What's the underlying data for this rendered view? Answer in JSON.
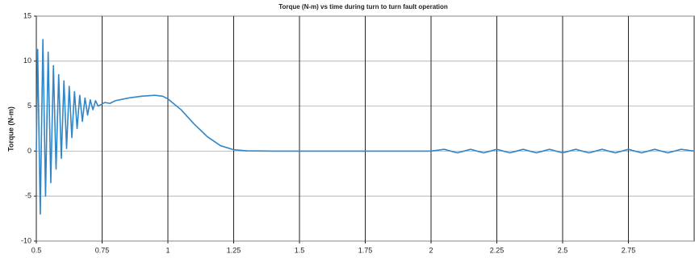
{
  "chart_data": {
    "type": "line",
    "title": "Torque (N-m) vs time during turn to turn fault operation",
    "y_label": "Torque (N-m)",
    "color": "#2f86c9",
    "grid": true,
    "xlim": [
      0.5,
      3.0
    ],
    "xticks": [
      0.5,
      0.75,
      1,
      1.25,
      1.5,
      1.75,
      2,
      2.25,
      2.5,
      2.75
    ],
    "ylim": [
      -10,
      15
    ],
    "yticks": [
      -10,
      -5,
      0,
      5,
      10,
      15
    ],
    "x": [
      0.5,
      0.505,
      0.515,
      0.525,
      0.535,
      0.545,
      0.555,
      0.565,
      0.575,
      0.585,
      0.595,
      0.605,
      0.615,
      0.625,
      0.635,
      0.645,
      0.655,
      0.665,
      0.675,
      0.685,
      0.695,
      0.705,
      0.715,
      0.725,
      0.735,
      0.76,
      0.78,
      0.8,
      0.85,
      0.9,
      0.95,
      0.98,
      1.0,
      1.05,
      1.1,
      1.15,
      1.2,
      1.25,
      1.3,
      1.4,
      1.5,
      2.0,
      2.05,
      2.1,
      2.15,
      2.2,
      2.25,
      2.3,
      2.35,
      2.4,
      2.45,
      2.5,
      2.55,
      2.6,
      2.65,
      2.7,
      2.75,
      2.8,
      2.85,
      2.9,
      2.95,
      3.0
    ],
    "values": [
      0,
      11.3,
      -7,
      12.4,
      -5,
      11,
      -3.5,
      9.5,
      -2,
      8.5,
      -0.8,
      7.8,
      0.3,
      7.2,
      1.5,
      6.6,
      2.5,
      6.2,
      3.3,
      5.9,
      4.0,
      5.7,
      4.6,
      5.6,
      5.0,
      5.4,
      5.3,
      5.6,
      5.9,
      6.1,
      6.2,
      6.1,
      5.8,
      4.6,
      3.0,
      1.6,
      0.6,
      0.15,
      0.03,
      0,
      0,
      0,
      0.2,
      -0.2,
      0.2,
      -0.2,
      0.2,
      -0.2,
      0.2,
      -0.2,
      0.2,
      -0.2,
      0.2,
      -0.2,
      0.2,
      -0.2,
      0.2,
      -0.2,
      0.2,
      -0.2,
      0.2,
      0
    ]
  }
}
